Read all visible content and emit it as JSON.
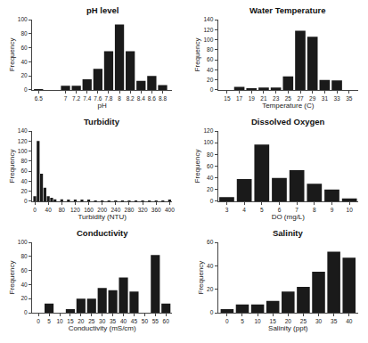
{
  "chart_data": [
    {
      "type": "bar",
      "title": "pH level",
      "xlabel": "pH",
      "ylabel": "Frequency",
      "x": [
        6.5,
        7.0,
        7.2,
        7.4,
        7.6,
        7.8,
        8.0,
        8.2,
        8.4,
        8.6,
        8.8
      ],
      "values": [
        1,
        6,
        6,
        15,
        30,
        55,
        93,
        55,
        13,
        20,
        7
      ],
      "color": "#1a1a1a",
      "xlim": [
        6.38,
        8.98
      ],
      "xticks": [
        6.5,
        7,
        7.2,
        7.4,
        7.6,
        7.8,
        8,
        8.2,
        8.4,
        8.6,
        8.8
      ],
      "ylim": [
        0,
        100
      ],
      "yticks": [
        0,
        20,
        40,
        60,
        80,
        100
      ],
      "grid": false
    },
    {
      "type": "bar",
      "title": "Water Temperature",
      "xlabel": "Temperature (C)",
      "ylabel": "Frequency",
      "x": [
        15,
        17,
        19,
        21,
        23,
        25,
        27,
        29,
        31,
        33,
        35
      ],
      "values": [
        0,
        6,
        3,
        5,
        5,
        27,
        118,
        106,
        20,
        19,
        0
      ],
      "color": "#1a1a1a",
      "xlim": [
        13.5,
        36.5
      ],
      "xticks": [
        15,
        17,
        19,
        21,
        23,
        25,
        27,
        29,
        31,
        33,
        35
      ],
      "ylim": [
        0,
        140
      ],
      "yticks": [
        0,
        20,
        40,
        60,
        80,
        100,
        120,
        140
      ],
      "grid": false
    },
    {
      "type": "bar",
      "title": "Turbidity",
      "xlabel": "Turbidity (NTU)",
      "ylabel": "Frequency",
      "x": [
        0,
        10,
        20,
        30,
        40,
        50,
        60,
        80,
        100,
        120,
        140,
        160,
        180,
        200,
        220,
        240,
        260,
        280,
        300,
        320,
        340,
        360,
        380,
        400
      ],
      "values": [
        10,
        120,
        55,
        27,
        10,
        7,
        4,
        4,
        3,
        3,
        2,
        2,
        1,
        1,
        1,
        1,
        1,
        1,
        1,
        1,
        1,
        1,
        1,
        2
      ],
      "color": "#1a1a1a",
      "xlim": [
        -8,
        408
      ],
      "xticks": [
        0,
        40,
        80,
        120,
        160,
        200,
        240,
        280,
        320,
        360,
        400
      ],
      "ylim": [
        0,
        140
      ],
      "yticks": [
        0,
        20,
        40,
        60,
        80,
        100,
        120,
        140
      ],
      "grid": false
    },
    {
      "type": "bar",
      "title": "Dissolved Oxygen",
      "xlabel": "DO (mg/L)",
      "ylabel": "Frequency",
      "x": [
        3,
        4,
        5,
        6,
        7,
        8,
        9,
        10
      ],
      "values": [
        7,
        38,
        97,
        40,
        53,
        30,
        20,
        5
      ],
      "color": "#1a1a1a",
      "xlim": [
        2.5,
        10.5
      ],
      "xticks": [
        3,
        4,
        5,
        6,
        7,
        8,
        9,
        10
      ],
      "ylim": [
        0,
        120
      ],
      "yticks": [
        0,
        20,
        40,
        60,
        80,
        100,
        120
      ],
      "grid": false
    },
    {
      "type": "bar",
      "title": "Conductivity",
      "xlabel": "Conductivity (mS/cm)",
      "ylabel": "Frequency",
      "x": [
        0,
        5,
        10,
        15,
        20,
        25,
        30,
        35,
        40,
        45,
        50,
        55,
        60
      ],
      "values": [
        0,
        13,
        0,
        5,
        20,
        20,
        35,
        32,
        50,
        30,
        0,
        82,
        13
      ],
      "color": "#1a1a1a",
      "xlim": [
        -3,
        63
      ],
      "xticks": [
        0,
        5,
        10,
        15,
        20,
        25,
        30,
        35,
        40,
        45,
        50,
        55,
        60
      ],
      "ylim": [
        0,
        100
      ],
      "yticks": [
        0,
        20,
        40,
        60,
        80,
        100
      ],
      "grid": false
    },
    {
      "type": "bar",
      "title": "Salinity",
      "xlabel": "Salinity (ppt)",
      "ylabel": "Frequency",
      "x": [
        0,
        5,
        10,
        15,
        20,
        25,
        30,
        35,
        40
      ],
      "values": [
        3,
        7,
        7,
        10,
        18,
        22,
        35,
        52,
        47
      ],
      "color": "#1a1a1a",
      "xlim": [
        -3,
        43
      ],
      "xticks": [
        0,
        5,
        10,
        15,
        20,
        25,
        30,
        35,
        40
      ],
      "ylim": [
        0,
        60
      ],
      "yticks": [
        0,
        20,
        40,
        60
      ],
      "grid": false
    }
  ]
}
